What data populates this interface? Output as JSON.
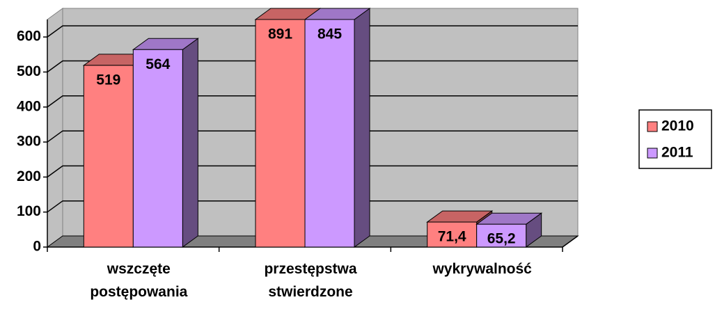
{
  "chart_data": {
    "type": "bar3d",
    "categories": [
      "wszczęte postępowania",
      "przestępstwa stwierdzone",
      "wykrywalność"
    ],
    "series": [
      {
        "name": "2010",
        "color": "#ff8080",
        "values": [
          519,
          891,
          71.4
        ],
        "value_labels": [
          "519",
          "891",
          "71,4"
        ]
      },
      {
        "name": "2011",
        "color": "#cc99ff",
        "values": [
          564,
          845,
          65.2
        ],
        "value_labels": [
          "564",
          "845",
          "65,2"
        ]
      }
    ],
    "ylim": [
      0,
      650
    ],
    "yticks": [
      0,
      100,
      200,
      300,
      400,
      500,
      600
    ],
    "grid": true,
    "legend": "right"
  }
}
